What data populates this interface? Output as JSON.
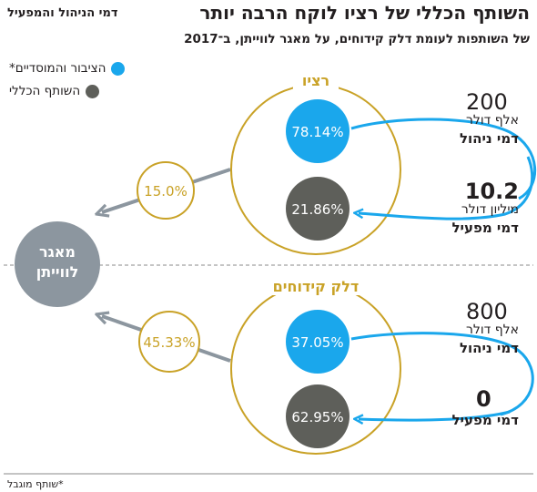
{
  "header": {
    "title": "השותף הכללי של רציו לוקח הרבה יותר",
    "kicker": "דמי הניהול והמפעיל",
    "subtitle": "של השותפות לעומת דלק קידוחים, על מאגר לווייתן, ב־2017"
  },
  "legend": [
    {
      "label": "הציבור והמוסדיים*",
      "color": "#1aa7ec"
    },
    {
      "label": "השותף הכללי",
      "color": "#5e5f5a"
    }
  ],
  "colors": {
    "gold": "#c9a227",
    "blue": "#1aa7ec",
    "gray": "#5e5f5a",
    "reservoir": "#8c969f",
    "arrow": "#8c969f"
  },
  "reservoir": {
    "label_line1": "מאגר",
    "label_line2": "לווייתן"
  },
  "partnerships": [
    {
      "name": "רציו",
      "stake": "15.0%",
      "public_share": "78.14%",
      "gp_share": "21.86%",
      "management_fee": {
        "amount": "200",
        "unit": "אלף דולר",
        "label": "דמי ניהול"
      },
      "operator_fee": {
        "amount": "10.2",
        "unit": "מיליון דולר",
        "label": "דמי מפעיל"
      }
    },
    {
      "name": "דלק קידוחים",
      "stake": "45.33%",
      "public_share": "37.05%",
      "gp_share": "62.95%",
      "management_fee": {
        "amount": "800",
        "unit": "אלף דולר",
        "label": "דמי ניהול"
      },
      "operator_fee": {
        "amount": "0",
        "unit": "",
        "label": "דמי מפעיל"
      }
    }
  ],
  "footnote": "*שותף מוגבל"
}
